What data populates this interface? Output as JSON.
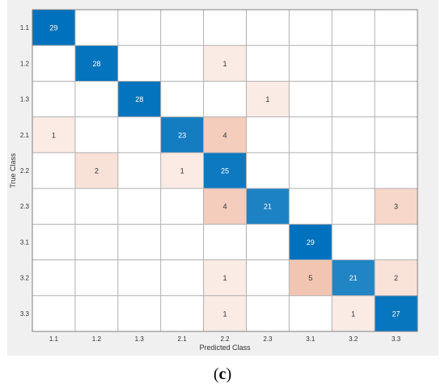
{
  "caption": {
    "open": "(",
    "letter": "c",
    "close": ")"
  },
  "chart_data": {
    "type": "heatmap",
    "title": "",
    "xlabel": "Predicted Class",
    "ylabel": "True Class",
    "x_categories": [
      "1.1",
      "1.2",
      "1.3",
      "2.1",
      "2.2",
      "2.3",
      "3.1",
      "3.2",
      "3.3"
    ],
    "y_categories": [
      "1.1",
      "1.2",
      "1.3",
      "2.1",
      "2.2",
      "2.3",
      "3.1",
      "3.2",
      "3.3"
    ],
    "matrix": [
      [
        29,
        0,
        0,
        0,
        0,
        0,
        0,
        0,
        0
      ],
      [
        0,
        28,
        0,
        0,
        1,
        0,
        0,
        0,
        0
      ],
      [
        0,
        0,
        28,
        0,
        0,
        1,
        0,
        0,
        0
      ],
      [
        1,
        0,
        0,
        23,
        4,
        0,
        0,
        0,
        0
      ],
      [
        0,
        2,
        0,
        1,
        25,
        0,
        0,
        0,
        0
      ],
      [
        0,
        0,
        0,
        0,
        4,
        21,
        0,
        0,
        3
      ],
      [
        0,
        0,
        0,
        0,
        0,
        0,
        29,
        0,
        0
      ],
      [
        0,
        0,
        0,
        0,
        1,
        0,
        5,
        21,
        2
      ],
      [
        0,
        0,
        0,
        0,
        1,
        0,
        0,
        1,
        27
      ]
    ],
    "colors": {
      "diagonal": "#0072bd",
      "off_diagonal": "#d95319",
      "grid": "#b0b0b0",
      "text_dark": "#333333",
      "text_light": "#ffffff"
    },
    "grid": true,
    "legend": "none"
  }
}
